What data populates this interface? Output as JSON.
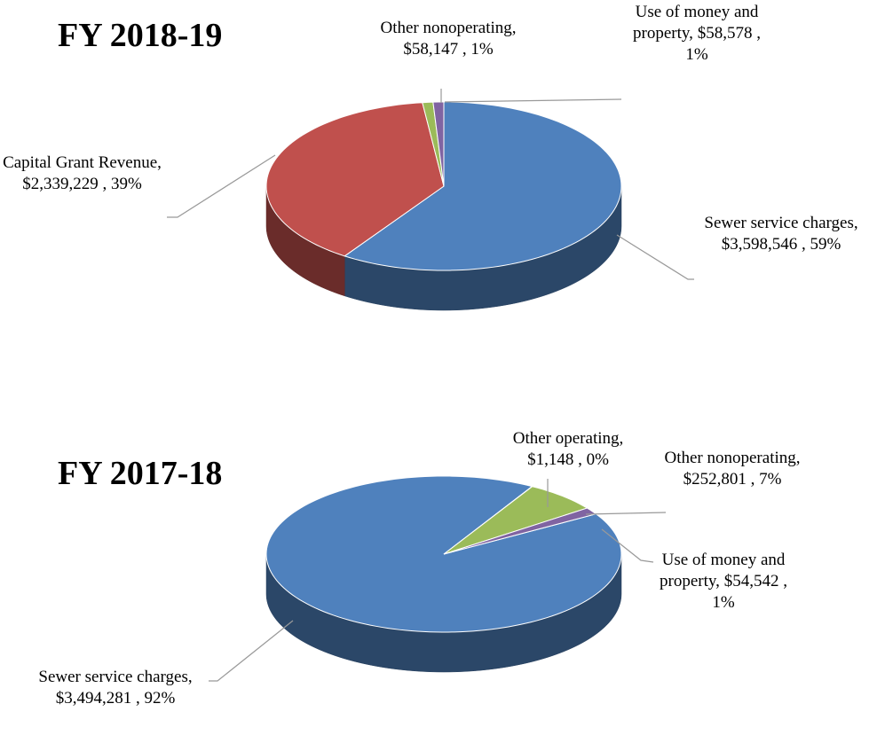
{
  "chart_data": [
    {
      "type": "pie",
      "title": "FY 2018-19",
      "categories": [
        "Sewer service charges,",
        "Capital Grant Revenue,",
        "Other nonoperating,",
        "Use of money and property,"
      ],
      "values": [
        3598546,
        2339229,
        58147,
        58578
      ],
      "value_labels": [
        "$3,598,546 ,",
        "$2,339,229 ,",
        "$58,147 ,",
        "$58,578 ,"
      ],
      "percents": [
        59,
        39,
        1,
        1
      ],
      "percent_labels": [
        "59%",
        "39%",
        "1%",
        "1%"
      ],
      "colors": [
        "#4f81bd",
        "#c0504d",
        "#9bbb59",
        "#8064a2"
      ]
    },
    {
      "type": "pie",
      "title": "FY 2017-18",
      "categories": [
        "Sewer service charges,",
        "Other operating,",
        "Other nonoperating,",
        "Use of money and property,"
      ],
      "values": [
        3494281,
        1148,
        252801,
        54542
      ],
      "value_labels": [
        "$3,494,281 ,",
        "$1,148 ,",
        "$252,801 ,",
        "$54,542 ,"
      ],
      "percents": [
        92,
        0,
        7,
        1
      ],
      "percent_labels": [
        "92%",
        "0%",
        "7%",
        "1%"
      ],
      "colors": [
        "#4f81bd",
        "#c0504d",
        "#9bbb59",
        "#8064a2"
      ]
    }
  ]
}
